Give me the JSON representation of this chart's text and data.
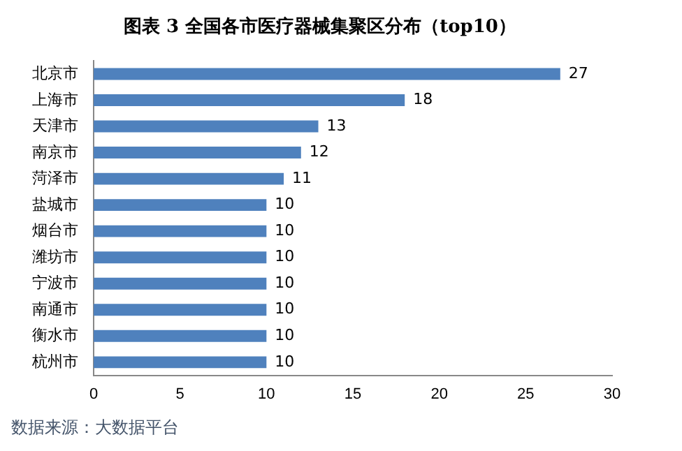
{
  "chart_data": {
    "type": "bar",
    "orientation": "horizontal",
    "title": "图表 3 全国各市医疗器械集聚区分布（top10）",
    "categories": [
      "北京市",
      "上海市",
      "天津市",
      "南京市",
      "菏泽市",
      "盐城市",
      "烟台市",
      "潍坊市",
      "宁波市",
      "南通市",
      "衡水市",
      "杭州市"
    ],
    "values": [
      27,
      18,
      13,
      12,
      11,
      10,
      10,
      10,
      10,
      10,
      10,
      10
    ],
    "color": "#4f81bd",
    "xlim": [
      0,
      30
    ],
    "xticks": [
      0,
      5,
      10,
      15,
      20,
      25,
      30
    ],
    "grid": false,
    "legend": false,
    "data_labels": true,
    "annotations": [
      "数据来源：大数据平台"
    ]
  }
}
